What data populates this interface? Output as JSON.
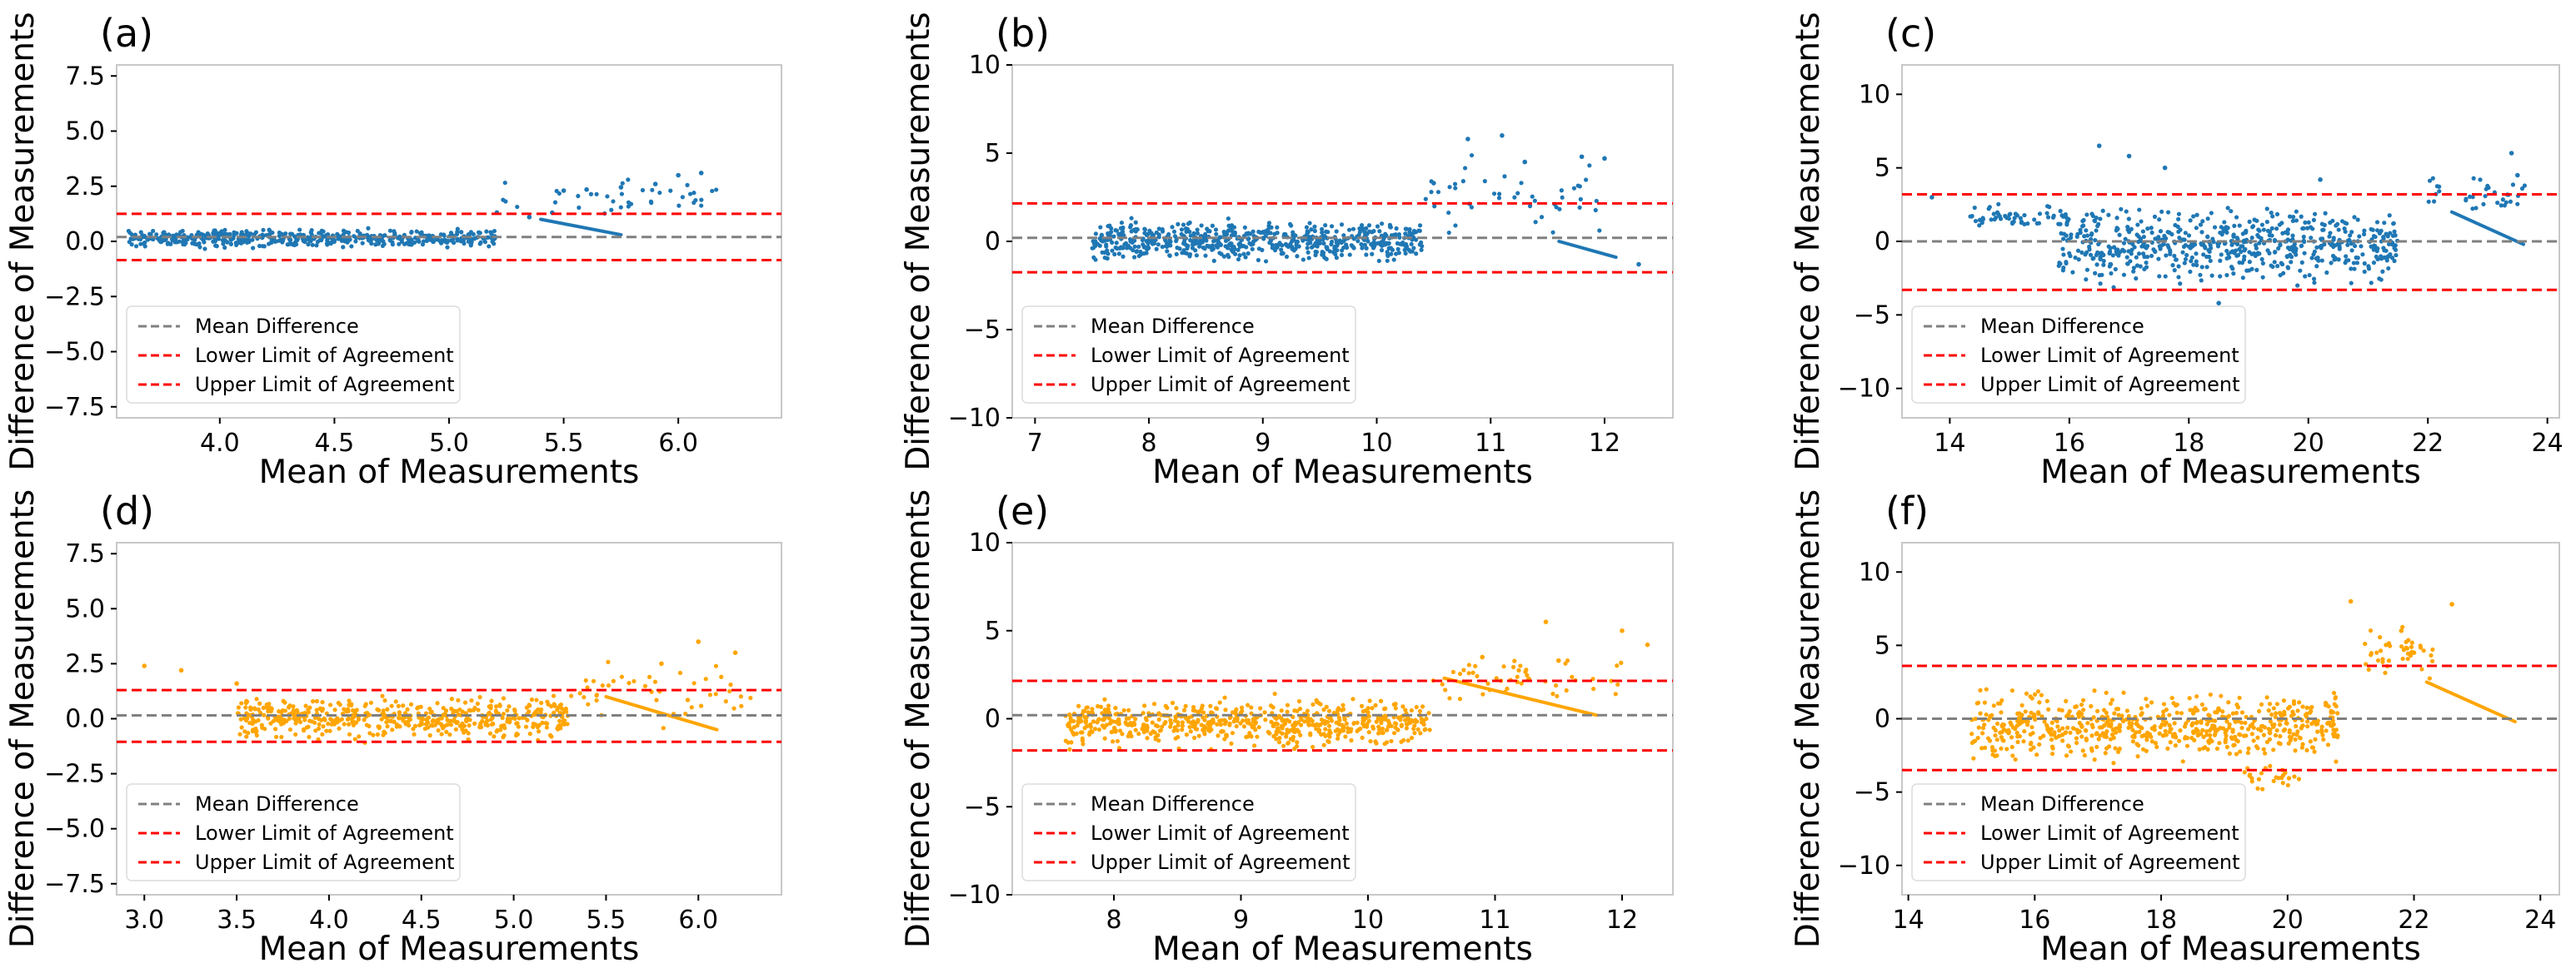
{
  "figure": {
    "legend_entries": [
      "Mean Difference",
      "Lower Limit of Agreement",
      "Upper Limit of Agreement"
    ],
    "colors": {
      "blue": "#1f77b4",
      "orange": "#ffa500",
      "mean_line": "#808080",
      "limit_line": "#ff0000"
    }
  },
  "chart_data": [
    {
      "panel": "(a)",
      "type": "scatter",
      "color": "blue",
      "xlabel": "Mean of Measurements",
      "ylabel": "Difference  of Measurements",
      "xlim": [
        3.55,
        6.45
      ],
      "ylim": [
        -8.0,
        8.0
      ],
      "xticks": [
        4.0,
        4.5,
        5.0,
        5.5,
        6.0
      ],
      "xtick_labels": [
        "4.0",
        "4.5",
        "5.0",
        "5.5",
        "6.0"
      ],
      "yticks": [
        -7.5,
        -5.0,
        -2.5,
        0.0,
        2.5,
        5.0,
        7.5
      ],
      "ytick_labels": [
        "−7.5",
        "−5.0",
        "−2.5",
        "0.0",
        "2.5",
        "5.0",
        "7.5"
      ],
      "mean_difference": 0.2,
      "lower_limit": -0.85,
      "upper_limit": 1.25,
      "legend_position": "lower-left",
      "clusters": [
        {
          "x": [
            3.6,
            5.2
          ],
          "y": [
            -0.4,
            0.7
          ],
          "n": 520
        },
        {
          "x": [
            5.2,
            6.2
          ],
          "y": [
            0.8,
            3.2
          ],
          "n": 40
        }
      ],
      "points": [
        [
          6.1,
          3.1
        ],
        [
          6.0,
          3.0
        ],
        [
          5.9,
          2.6
        ],
        [
          5.75,
          2.45
        ],
        [
          5.6,
          2.35
        ],
        [
          5.5,
          2.3
        ],
        [
          5.45,
          1.3
        ],
        [
          5.35,
          1.1
        ]
      ],
      "trend": {
        "x": [
          5.4,
          5.75
        ],
        "y": [
          1.0,
          0.3
        ]
      }
    },
    {
      "panel": "(b)",
      "type": "scatter",
      "color": "blue",
      "xlabel": "Mean of Measurements",
      "ylabel": "Difference  of Measurements",
      "xlim": [
        6.8,
        12.6
      ],
      "ylim": [
        -10.0,
        10.0
      ],
      "xticks": [
        7,
        8,
        9,
        10,
        11,
        12
      ],
      "xtick_labels": [
        "7",
        "8",
        "9",
        "10",
        "11",
        "12"
      ],
      "yticks": [
        -10,
        -5,
        0,
        5,
        10
      ],
      "ytick_labels": [
        "−10",
        "−5",
        "0",
        "5",
        "10"
      ],
      "mean_difference": 0.2,
      "lower_limit": -1.75,
      "upper_limit": 2.15,
      "legend_position": "lower-left",
      "clusters": [
        {
          "x": [
            7.5,
            10.4
          ],
          "y": [
            -1.5,
            1.5
          ],
          "n": 620
        },
        {
          "x": [
            10.4,
            12.0
          ],
          "y": [
            -0.5,
            5.5
          ],
          "n": 45
        }
      ],
      "points": [
        [
          10.8,
          5.8
        ],
        [
          11.1,
          6.0
        ],
        [
          11.3,
          4.5
        ],
        [
          11.8,
          4.8
        ],
        [
          12.0,
          4.7
        ],
        [
          10.5,
          3.3
        ],
        [
          12.3,
          -1.3
        ]
      ],
      "trend": {
        "x": [
          11.6,
          12.1
        ],
        "y": [
          0.0,
          -0.9
        ]
      }
    },
    {
      "panel": "(c)",
      "type": "scatter",
      "color": "blue",
      "xlabel": "Mean of Measurements",
      "ylabel": "Difference  of Measurements",
      "xlim": [
        13.2,
        24.2
      ],
      "ylim": [
        -12.0,
        12.0
      ],
      "xticks": [
        14,
        16,
        18,
        20,
        22,
        24
      ],
      "xtick_labels": [
        "14",
        "16",
        "18",
        "20",
        "22",
        "24"
      ],
      "yticks": [
        -10,
        -5,
        0,
        5,
        10
      ],
      "ytick_labels": [
        "−10",
        "−5",
        "0",
        "5",
        "10"
      ],
      "mean_difference": 0.0,
      "lower_limit": -3.3,
      "upper_limit": 3.2,
      "legend_position": "lower-left",
      "clusters": [
        {
          "x": [
            14.3,
            16.0
          ],
          "y": [
            0.5,
            2.8
          ],
          "n": 55
        },
        {
          "x": [
            15.8,
            21.5
          ],
          "y": [
            -3.5,
            3.0
          ],
          "n": 620
        },
        {
          "x": [
            22.0,
            23.7
          ],
          "y": [
            1.5,
            5.0
          ],
          "n": 35
        }
      ],
      "points": [
        [
          16.5,
          6.5
        ],
        [
          17.0,
          5.8
        ],
        [
          17.6,
          5.0
        ],
        [
          20.2,
          4.2
        ],
        [
          23.4,
          6.0
        ],
        [
          23.5,
          4.5
        ],
        [
          18.5,
          -4.2
        ],
        [
          13.7,
          3.0
        ]
      ],
      "trend": {
        "x": [
          22.4,
          23.6
        ],
        "y": [
          2.0,
          -0.2
        ]
      }
    },
    {
      "panel": "(d)",
      "type": "scatter",
      "color": "orange",
      "xlabel": "Mean of Measurements",
      "ylabel": "Difference  of Measurements",
      "xlim": [
        2.85,
        6.45
      ],
      "ylim": [
        -8.0,
        8.0
      ],
      "xticks": [
        3.0,
        3.5,
        4.0,
        4.5,
        5.0,
        5.5,
        6.0
      ],
      "xtick_labels": [
        "3.0",
        "3.5",
        "4.0",
        "4.5",
        "5.0",
        "5.5",
        "6.0"
      ],
      "yticks": [
        -7.5,
        -5.0,
        -2.5,
        0.0,
        2.5,
        5.0,
        7.5
      ],
      "ytick_labels": [
        "−7.5",
        "−5.0",
        "−2.5",
        "0.0",
        "2.5",
        "5.0",
        "7.5"
      ],
      "mean_difference": 0.15,
      "lower_limit": -1.05,
      "upper_limit": 1.3,
      "legend_position": "lower-left",
      "clusters": [
        {
          "x": [
            3.5,
            5.3
          ],
          "y": [
            -1.2,
            1.2
          ],
          "n": 520
        },
        {
          "x": [
            5.3,
            6.3
          ],
          "y": [
            -0.5,
            3.0
          ],
          "n": 45
        }
      ],
      "points": [
        [
          3.0,
          2.4
        ],
        [
          3.2,
          2.2
        ],
        [
          6.0,
          3.5
        ],
        [
          6.2,
          3.0
        ],
        [
          5.8,
          2.5
        ],
        [
          3.5,
          1.6
        ]
      ],
      "trend": {
        "x": [
          5.5,
          6.1
        ],
        "y": [
          1.0,
          -0.5
        ]
      }
    },
    {
      "panel": "(e)",
      "type": "scatter",
      "color": "orange",
      "xlabel": "Mean of Measurements",
      "ylabel": "Difference  of Measurements",
      "xlim": [
        7.2,
        12.4
      ],
      "ylim": [
        -10.0,
        10.0
      ],
      "xticks": [
        8,
        9,
        10,
        11,
        12
      ],
      "xtick_labels": [
        "8",
        "9",
        "10",
        "11",
        "12"
      ],
      "yticks": [
        -10,
        -5,
        0,
        5,
        10
      ],
      "ytick_labels": [
        "−10",
        "−5",
        "0",
        "5",
        "10"
      ],
      "mean_difference": 0.2,
      "lower_limit": -1.8,
      "upper_limit": 2.15,
      "legend_position": "lower-left",
      "clusters": [
        {
          "x": [
            7.6,
            10.5
          ],
          "y": [
            -2.0,
            1.5
          ],
          "n": 620
        },
        {
          "x": [
            10.5,
            12.0
          ],
          "y": [
            0.5,
            4.0
          ],
          "n": 50
        }
      ],
      "points": [
        [
          11.4,
          5.5
        ],
        [
          12.0,
          5.0
        ],
        [
          12.2,
          4.2
        ],
        [
          11.5,
          3.3
        ],
        [
          10.9,
          3.5
        ]
      ],
      "trend": {
        "x": [
          10.6,
          11.8
        ],
        "y": [
          2.3,
          0.2
        ]
      }
    },
    {
      "panel": "(f)",
      "type": "scatter",
      "color": "orange",
      "xlabel": "Mean of Measurements",
      "ylabel": "Difference  of Measurements",
      "xlim": [
        13.9,
        24.3
      ],
      "ylim": [
        -12.0,
        12.0
      ],
      "xticks": [
        14,
        16,
        18,
        20,
        22,
        24
      ],
      "xtick_labels": [
        "14",
        "16",
        "18",
        "20",
        "22",
        "24"
      ],
      "yticks": [
        -10,
        -5,
        0,
        5,
        10
      ],
      "ytick_labels": [
        "−10",
        "−5",
        "0",
        "5",
        "10"
      ],
      "mean_difference": 0.0,
      "lower_limit": -3.5,
      "upper_limit": 3.6,
      "legend_position": "lower-left",
      "clusters": [
        {
          "x": [
            15.0,
            20.8
          ],
          "y": [
            -3.5,
            2.5
          ],
          "n": 640
        },
        {
          "x": [
            19.3,
            20.2
          ],
          "y": [
            -5.0,
            -3.0
          ],
          "n": 25
        },
        {
          "x": [
            21.2,
            22.4
          ],
          "y": [
            2.5,
            6.5
          ],
          "n": 40
        }
      ],
      "points": [
        [
          21.0,
          8.0
        ],
        [
          22.6,
          7.8
        ],
        [
          21.8,
          6.0
        ],
        [
          22.0,
          4.5
        ]
      ],
      "trend": {
        "x": [
          22.2,
          23.6
        ],
        "y": [
          2.5,
          -0.2
        ]
      }
    }
  ]
}
